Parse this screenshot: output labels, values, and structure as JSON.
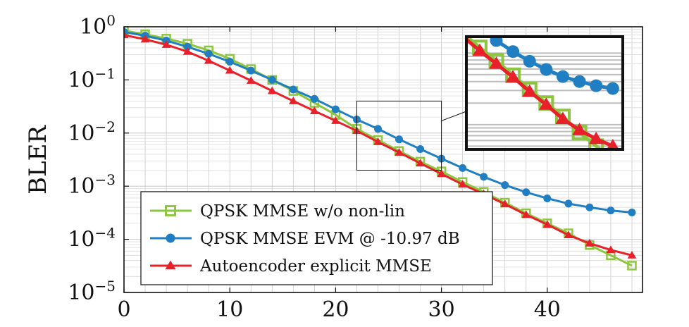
{
  "chart_data": {
    "type": "line",
    "title": "",
    "xlabel": "",
    "ylabel": "BLER",
    "xlim": [
      0,
      49
    ],
    "ylim": [
      1e-05,
      1
    ],
    "yscale": "log",
    "grid": true,
    "x_ticks": [
      {
        "value": 0,
        "label": "0"
      },
      {
        "value": 10,
        "label": "10"
      },
      {
        "value": 20,
        "label": "20"
      },
      {
        "value": 30,
        "label": "30"
      },
      {
        "value": 40,
        "label": "40"
      }
    ],
    "y_ticks": [
      {
        "value": 1,
        "base": "10",
        "exp": "0"
      },
      {
        "value": 0.1,
        "base": "10",
        "exp": "−1"
      },
      {
        "value": 0.01,
        "base": "10",
        "exp": "−2"
      },
      {
        "value": 0.001,
        "base": "10",
        "exp": "−3"
      },
      {
        "value": 0.0001,
        "base": "10",
        "exp": "−4"
      },
      {
        "value": 1e-05,
        "base": "10",
        "exp": "−5"
      }
    ],
    "legend_position": "bottom-left",
    "inset": {
      "xlim": [
        22,
        30
      ],
      "ylim": [
        0.002,
        0.04
      ]
    },
    "x": [
      0,
      2,
      4,
      6,
      8,
      10,
      12,
      14,
      16,
      18,
      20,
      22,
      24,
      26,
      28,
      30,
      32,
      34,
      36,
      38,
      40,
      42,
      44,
      46,
      48
    ],
    "series": [
      {
        "name": "QPSK MMSE w/o non-lin",
        "color": "#8cc63f",
        "marker": "square",
        "values": [
          0.85,
          0.72,
          0.6,
          0.48,
          0.36,
          0.25,
          0.16,
          0.1,
          0.062,
          0.037,
          0.022,
          0.012,
          0.0074,
          0.0046,
          0.0029,
          0.0019,
          0.0012,
          0.00078,
          0.00049,
          0.00031,
          0.0002,
          0.00013,
          7.8e-05,
          5e-05,
          3.2e-05
        ]
      },
      {
        "name": "QPSK MMSE EVM @ -10.97 dB",
        "color": "#1f7fc2",
        "marker": "circle",
        "values": [
          0.8,
          0.68,
          0.55,
          0.42,
          0.31,
          0.22,
          0.15,
          0.1,
          0.066,
          0.044,
          0.028,
          0.018,
          0.012,
          0.0076,
          0.005,
          0.0033,
          0.0022,
          0.0015,
          0.00105,
          0.00077,
          0.00059,
          0.00047,
          0.0004,
          0.00035,
          0.00032
        ]
      },
      {
        "name": "Autoencoder explicit MMSE",
        "color": "#e8202a",
        "marker": "triangle",
        "values": [
          0.7,
          0.58,
          0.46,
          0.34,
          0.23,
          0.15,
          0.097,
          0.062,
          0.04,
          0.026,
          0.017,
          0.011,
          0.0068,
          0.0043,
          0.0027,
          0.0017,
          0.00108,
          0.00071,
          0.00046,
          0.00029,
          0.00019,
          0.00012,
          8.4e-05,
          6.3e-05,
          5e-05
        ]
      }
    ]
  }
}
